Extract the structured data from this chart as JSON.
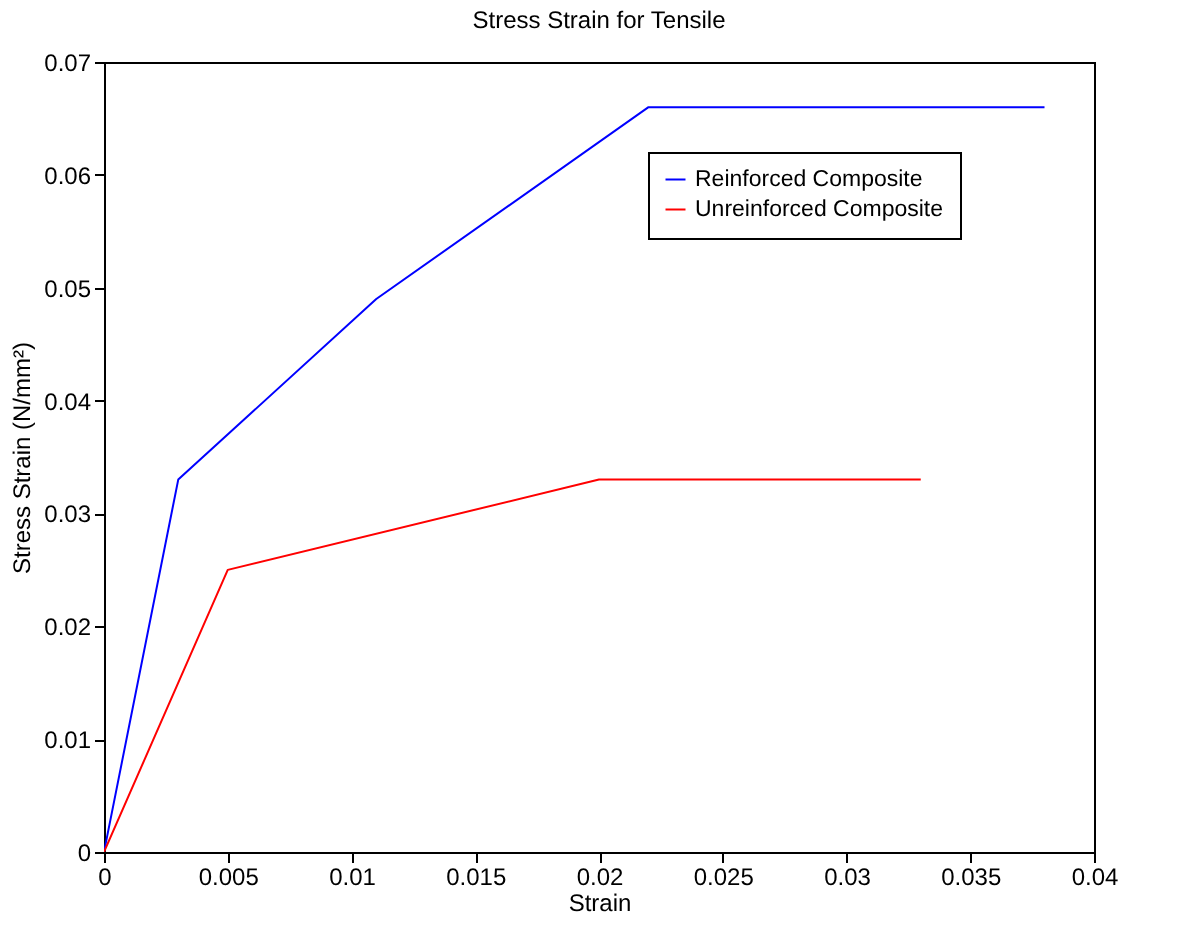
{
  "chart_data": {
    "type": "line",
    "title": "Stress Strain for Tensile",
    "xlabel": "Strain",
    "ylabel": "Stress Strain (N/mm²)",
    "series": [
      {
        "name": "Reinforced Composite",
        "color": "#0000ff",
        "x": [
          0,
          0.003,
          0.011,
          0.022,
          0.038
        ],
        "values": [
          0,
          0.033,
          0.049,
          0.066,
          0.066
        ]
      },
      {
        "name": "Unreinforced Composite",
        "color": "#ff0000",
        "x": [
          0,
          0.005,
          0.02,
          0.033
        ],
        "values": [
          0,
          0.025,
          0.033,
          0.033
        ]
      }
    ],
    "xlim": [
      0,
      0.04
    ],
    "xticks": [
      0,
      0.005,
      0.01,
      0.015,
      0.02,
      0.025,
      0.03,
      0.035,
      0.04
    ],
    "ylim": [
      0,
      0.07
    ],
    "yticks": [
      0,
      0.01,
      0.02,
      0.03,
      0.04,
      0.05,
      0.06,
      0.07
    ],
    "grid": false,
    "legend": "top right"
  }
}
